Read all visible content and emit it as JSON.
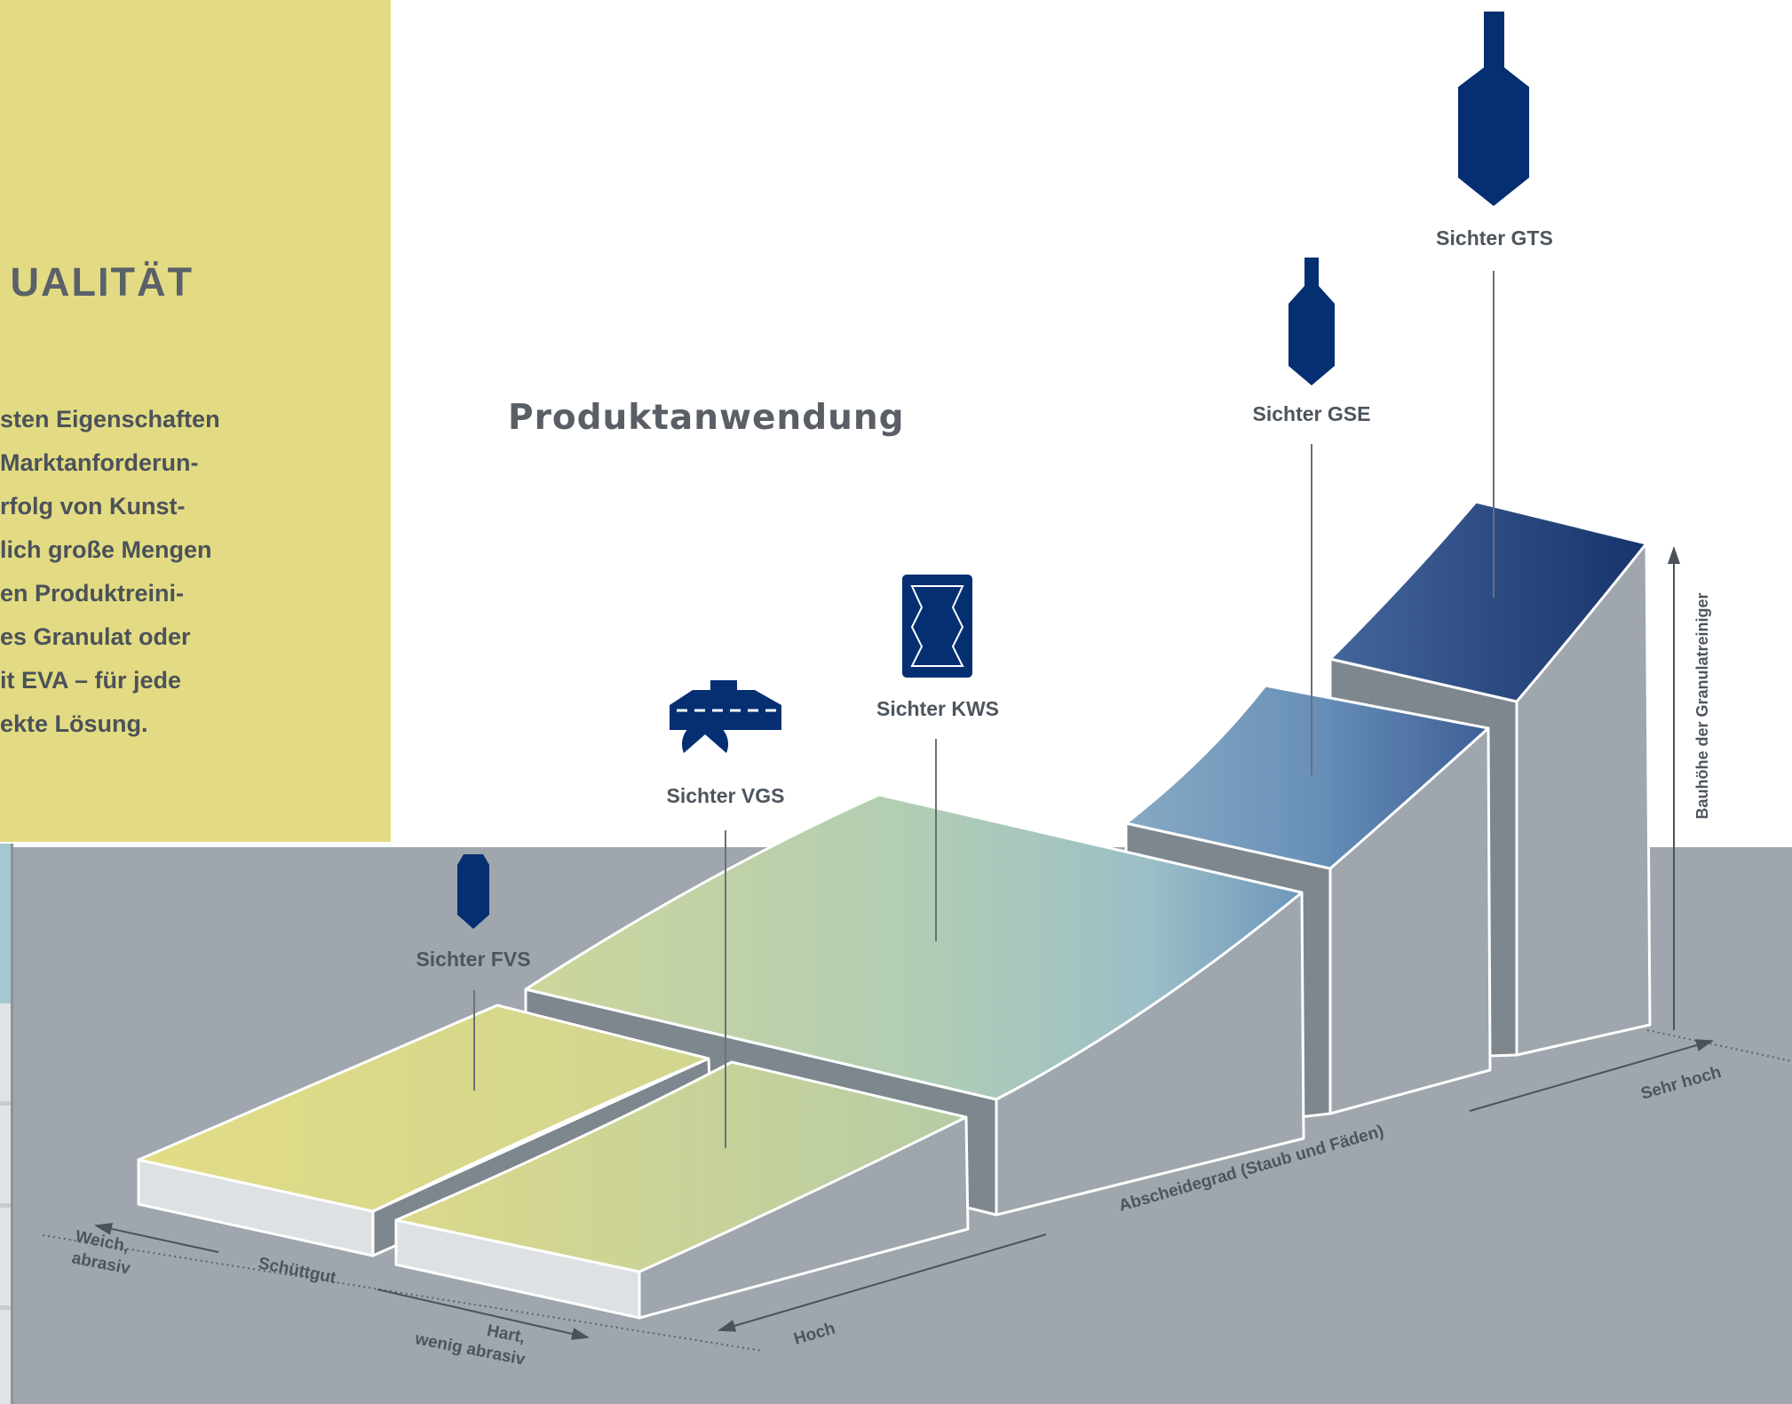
{
  "panel": {
    "heading": "UALITÄT",
    "lines": [
      "sten Eigenschaften",
      "Marktanforderun-",
      "rfolg von Kunst-",
      "lich große Mengen",
      "en Produktreini-",
      "es Granulat oder",
      "it EVA – für jede",
      "ekte Lösung."
    ]
  },
  "diagram": {
    "title": "Produktanwendung",
    "products": [
      {
        "name": "Sichter FVS",
        "icon": "small-bottle-icon"
      },
      {
        "name": "Sichter VGS",
        "icon": "hood-fan-icon"
      },
      {
        "name": "Sichter KWS",
        "icon": "zigzag-box-icon"
      },
      {
        "name": "Sichter GSE",
        "icon": "medium-bottle-icon"
      },
      {
        "name": "Sichter GTS",
        "icon": "large-bottle-icon"
      }
    ],
    "axes": {
      "material_label": "Schüttgut",
      "material_left": [
        "Weich,",
        "abrasiv"
      ],
      "material_right": [
        "Hart,",
        "wenig abrasiv"
      ],
      "separation_label": "Abscheidegrad (Staub und Fäden)",
      "separation_low": "Hoch",
      "separation_high": "Sehr hoch",
      "height_label": "Bauhöhe der Granulatreiniger"
    }
  },
  "colors": {
    "navy": "#062f72",
    "panel": "#e3db83",
    "floor": "#9fa6ad",
    "yellow_green": "#e1dc86",
    "sage": "#b7cda9",
    "steel_blue": "#6c93b9",
    "deep_blue": "#1d3d7a"
  }
}
